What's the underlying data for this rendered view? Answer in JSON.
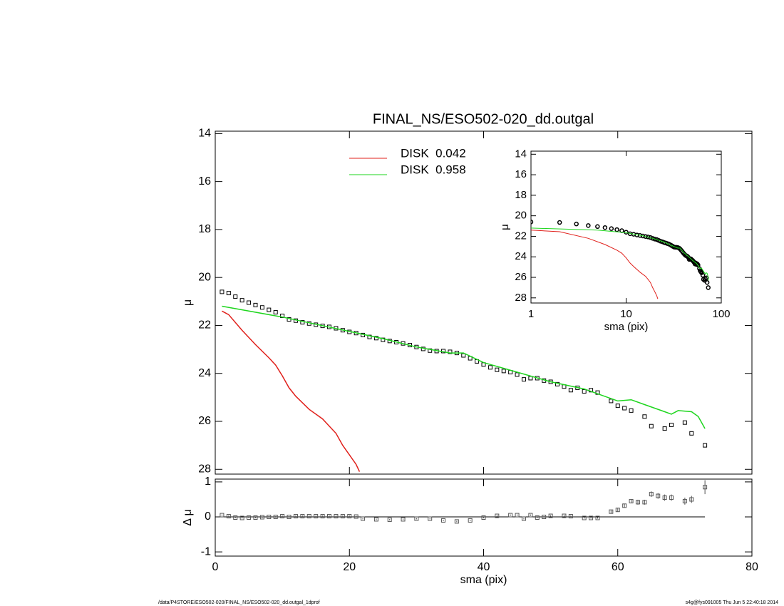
{
  "chart_data": [
    {
      "type": "line",
      "title": "FINAL_NS/ESO502-020_dd.outgal",
      "ylabel": "μ",
      "xlim": [
        0,
        80
      ],
      "xticks": [
        0,
        20,
        40,
        60,
        80
      ],
      "xtick_labels": false,
      "ylim": [
        28.2,
        13.9
      ],
      "yticks": [
        14,
        16,
        18,
        20,
        22,
        24,
        26,
        28
      ],
      "legend": "upper center",
      "series": [
        {
          "style": "squares",
          "color": "#000000",
          "x": [
            1,
            2,
            3,
            4,
            5,
            6,
            7,
            8,
            9,
            10,
            11,
            12,
            13,
            14,
            15,
            16,
            17,
            18,
            19,
            20,
            21,
            22,
            23,
            24,
            25,
            26,
            27,
            28,
            29,
            30,
            31,
            32,
            33,
            34,
            35,
            36,
            37,
            38,
            39,
            40,
            41,
            42,
            43,
            44,
            45,
            46,
            47,
            48,
            49,
            50,
            51,
            52,
            53,
            54,
            55,
            56,
            57,
            59,
            60,
            61,
            62,
            64,
            65,
            67,
            68,
            70,
            71,
            73
          ],
          "values": [
            20.6,
            20.65,
            20.8,
            20.95,
            21.05,
            21.15,
            21.25,
            21.35,
            21.45,
            21.6,
            21.75,
            21.8,
            21.87,
            21.92,
            21.97,
            22.02,
            22.06,
            22.12,
            22.2,
            22.27,
            22.32,
            22.4,
            22.48,
            22.53,
            22.6,
            22.65,
            22.7,
            22.75,
            22.82,
            22.9,
            22.98,
            23.05,
            23.07,
            23.07,
            23.1,
            23.15,
            23.25,
            23.37,
            23.5,
            23.63,
            23.75,
            23.85,
            23.9,
            23.95,
            24.05,
            24.25,
            24.2,
            24.2,
            24.3,
            24.35,
            24.45,
            24.55,
            24.7,
            24.6,
            24.75,
            24.7,
            24.8,
            25.15,
            25.35,
            25.45,
            25.55,
            25.8,
            26.2,
            26.3,
            26.15,
            26.05,
            26.5,
            27.0
          ]
        },
        {
          "name": "DISK  0.042",
          "style": "line",
          "color": "#e0201b",
          "x": [
            1,
            2,
            4,
            6,
            8,
            9,
            10,
            11,
            12,
            14,
            16,
            17,
            18,
            19,
            20,
            21,
            21.5
          ],
          "values": [
            21.4,
            21.55,
            22.2,
            22.8,
            23.35,
            23.65,
            24.1,
            24.6,
            24.95,
            25.5,
            25.9,
            26.2,
            26.5,
            27.0,
            27.4,
            27.8,
            28.1
          ]
        },
        {
          "name": "DISK  0.958",
          "style": "line",
          "color": "#1ed61e",
          "x": [
            1,
            5,
            10,
            15,
            20,
            25,
            30,
            35,
            37,
            40,
            45,
            50,
            55,
            58,
            60,
            62,
            64,
            67,
            68,
            69,
            71,
            72,
            73
          ],
          "values": [
            21.2,
            21.4,
            21.65,
            21.95,
            22.25,
            22.55,
            22.9,
            23.15,
            23.15,
            23.55,
            23.95,
            24.35,
            24.65,
            24.95,
            25.15,
            25.1,
            25.3,
            25.6,
            25.7,
            25.55,
            25.6,
            25.8,
            26.3
          ]
        }
      ]
    },
    {
      "type": "scatter",
      "xlabel": "sma (pix)",
      "ylabel": "Δ μ",
      "xlim": [
        0,
        80
      ],
      "xticks": [
        0,
        20,
        40,
        60,
        80
      ],
      "ylim": [
        -1.12,
        1.08
      ],
      "yticks": [
        -1,
        0,
        1
      ],
      "hline": 0,
      "series": [
        {
          "style": "squares",
          "color": "#555555",
          "x": [
            1,
            2,
            3,
            4,
            5,
            6,
            7,
            8,
            9,
            10,
            11,
            12,
            13,
            14,
            15,
            16,
            17,
            18,
            19,
            20,
            21,
            22,
            24,
            26,
            28,
            30,
            32,
            34,
            36,
            38,
            40,
            42,
            44,
            45,
            46,
            47,
            48,
            49,
            50,
            52,
            53,
            55,
            56,
            57,
            59,
            60,
            61,
            62,
            63,
            64,
            65,
            66,
            67,
            68,
            70,
            71,
            73
          ],
          "values": [
            0.05,
            0.02,
            -0.02,
            -0.03,
            -0.02,
            -0.02,
            -0.01,
            0,
            0,
            0.02,
            0,
            0.02,
            0.02,
            0.02,
            0.02,
            0.02,
            0.02,
            0.02,
            0.02,
            0.02,
            0.01,
            -0.05,
            -0.07,
            -0.08,
            -0.07,
            -0.05,
            -0.05,
            -0.1,
            -0.13,
            -0.1,
            -0.02,
            0.03,
            0.05,
            0.05,
            -0.05,
            0.05,
            -0.02,
            0,
            0.03,
            0.03,
            0.02,
            -0.03,
            -0.03,
            -0.03,
            0.15,
            0.2,
            0.32,
            0.45,
            0.42,
            0.42,
            0.65,
            0.6,
            0.55,
            0.55,
            0.45,
            0.5,
            0.85
          ],
          "errors": [
            0.02,
            0.02,
            0.02,
            0.02,
            0.02,
            0.02,
            0.02,
            0.02,
            0.02,
            0.02,
            0.02,
            0.02,
            0.02,
            0.02,
            0.02,
            0.02,
            0.02,
            0.02,
            0.02,
            0.02,
            0.02,
            0.02,
            0.02,
            0.02,
            0.02,
            0.02,
            0.02,
            0.02,
            0.02,
            0.02,
            0.02,
            0.02,
            0.02,
            0.02,
            0.02,
            0.02,
            0.02,
            0.02,
            0.02,
            0.02,
            0.02,
            0.02,
            0.02,
            0.02,
            0.05,
            0.05,
            0.05,
            0.06,
            0.07,
            0.07,
            0.08,
            0.08,
            0.09,
            0.09,
            0.1,
            0.1,
            0.2
          ]
        }
      ]
    },
    {
      "type": "line",
      "xlabel": "sma (pix)",
      "ylabel": "μ",
      "xlog": true,
      "xlim": [
        1,
        100
      ],
      "xticks": [
        1,
        10,
        100
      ],
      "ylim": [
        28.5,
        13.7
      ],
      "yticks": [
        14,
        16,
        18,
        20,
        22,
        24,
        26,
        28
      ]
    }
  ],
  "footer": {
    "left": "/data/P4STORE/ESO502-020/FINAL_NS/ESO502-020_dd.outgal_1dprof",
    "right": "s4g@fys091005  Thu Jun  5 22:40:18 2014"
  }
}
